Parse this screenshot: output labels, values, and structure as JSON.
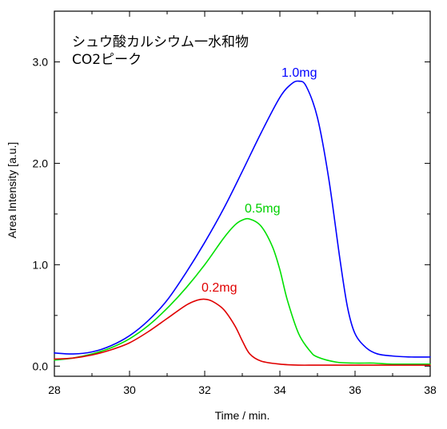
{
  "chart_data": {
    "type": "line",
    "title_lines": [
      "シュウ酸カルシウム一水和物",
      "CO2ピーク"
    ],
    "xlabel": "Time / min.",
    "ylabel": "Area Intensity [a.u.]",
    "xlim": [
      28,
      38
    ],
    "ylim": [
      -0.1,
      3.5
    ],
    "x_ticks": [
      28,
      30,
      32,
      34,
      36,
      38
    ],
    "x_tick_labels": [
      "28",
      "30",
      "32",
      "34",
      "36",
      "38"
    ],
    "y_ticks": [
      0.0,
      1.0,
      2.0,
      3.0
    ],
    "y_tick_labels": [
      "0.0",
      "1.0",
      "2.0",
      "3.0"
    ],
    "grid": false,
    "series": [
      {
        "name": "1.0mg",
        "color": "#0000ff",
        "x": [
          28.0,
          28.5,
          29.0,
          29.5,
          30.0,
          30.5,
          31.0,
          31.5,
          32.0,
          32.5,
          33.0,
          33.5,
          34.0,
          34.3,
          34.5,
          34.7,
          35.0,
          35.3,
          35.6,
          35.8,
          36.0,
          36.3,
          36.6,
          37.0,
          37.5,
          38.0
        ],
        "y": [
          0.13,
          0.12,
          0.14,
          0.2,
          0.3,
          0.45,
          0.65,
          0.92,
          1.22,
          1.55,
          1.92,
          2.3,
          2.65,
          2.78,
          2.81,
          2.76,
          2.45,
          1.85,
          1.05,
          0.58,
          0.32,
          0.18,
          0.12,
          0.1,
          0.09,
          0.09
        ]
      },
      {
        "name": "0.5mg",
        "color": "#00e000",
        "x": [
          28.0,
          28.5,
          29.0,
          29.5,
          30.0,
          30.5,
          31.0,
          31.5,
          32.0,
          32.5,
          32.8,
          33.0,
          33.2,
          33.5,
          33.8,
          34.0,
          34.2,
          34.5,
          34.8,
          35.0,
          35.5,
          36.0,
          36.5,
          37.0,
          38.0
        ],
        "y": [
          0.06,
          0.08,
          0.12,
          0.18,
          0.27,
          0.4,
          0.57,
          0.77,
          1.0,
          1.26,
          1.39,
          1.44,
          1.45,
          1.38,
          1.18,
          0.95,
          0.65,
          0.32,
          0.15,
          0.09,
          0.04,
          0.03,
          0.03,
          0.02,
          0.02
        ]
      },
      {
        "name": "0.2mg",
        "color": "#e00000",
        "x": [
          28.0,
          28.5,
          29.0,
          29.5,
          30.0,
          30.5,
          31.0,
          31.5,
          31.8,
          32.0,
          32.2,
          32.5,
          32.8,
          33.0,
          33.2,
          33.5,
          34.0,
          34.5,
          35.0,
          36.0,
          37.0,
          38.0
        ],
        "y": [
          0.07,
          0.08,
          0.11,
          0.16,
          0.23,
          0.34,
          0.47,
          0.6,
          0.65,
          0.66,
          0.64,
          0.56,
          0.4,
          0.25,
          0.12,
          0.05,
          0.02,
          0.01,
          0.01,
          0.01,
          0.01,
          0.01
        ]
      }
    ],
    "annotations": [
      {
        "text": "1.0mg",
        "series": "1.0mg"
      },
      {
        "text": "0.5mg",
        "series": "0.5mg"
      },
      {
        "text": "0.2mg",
        "series": "0.2mg"
      }
    ]
  }
}
